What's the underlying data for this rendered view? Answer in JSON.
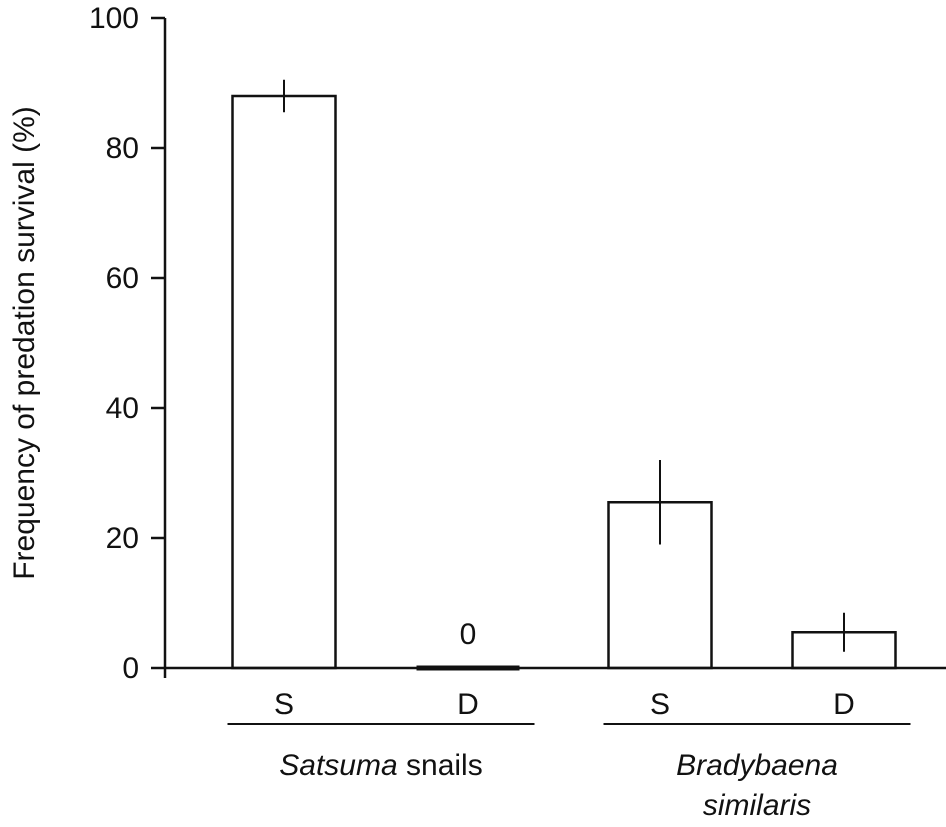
{
  "chart_data": {
    "type": "bar",
    "ylabel": "Frequency of predation survival (%)",
    "ylim": [
      0,
      100
    ],
    "yticks": [
      0,
      20,
      40,
      60,
      80,
      100
    ],
    "categories": [
      "S",
      "D",
      "S",
      "D"
    ],
    "values": [
      88,
      0,
      25.5,
      5.5
    ],
    "errors": [
      2.5,
      0,
      6.5,
      3
    ],
    "data_labels": [
      "",
      "0",
      "",
      ""
    ],
    "groups": [
      {
        "name_italic": "Satsuma",
        "name_rest": " snails",
        "bars": [
          0,
          1
        ]
      },
      {
        "name_italic": "Bradybaena",
        "name_line2": "similaris",
        "bars": [
          2,
          3
        ]
      }
    ],
    "grid": false,
    "legend": "none"
  }
}
